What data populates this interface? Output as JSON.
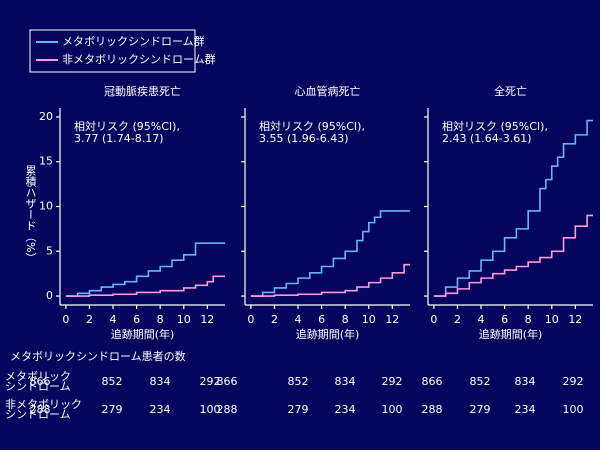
{
  "chart_data": [
    {
      "type": "step",
      "title": "冠動脈疾患死亡",
      "annotation": [
        "相対リスク (95%CI),",
        "3.77 (1.74-8.17)"
      ],
      "ylabel": "累積ハザード（%）",
      "xlabel": "追跡期間(年)",
      "xlim": [
        -0.5,
        13.5
      ],
      "xticks": [
        0,
        2,
        4,
        6,
        8,
        10,
        12
      ],
      "ylim": [
        -1,
        21
      ],
      "yticks": [
        0,
        5,
        10,
        15,
        20
      ],
      "series": [
        {
          "name": "メタボリックシンドローム群",
          "color": "#66b3ff",
          "x": [
            0,
            1,
            2,
            3,
            4,
            5,
            6,
            7,
            8,
            9,
            10,
            11,
            13.5
          ],
          "values": [
            0,
            0.3,
            0.6,
            1.0,
            1.3,
            1.6,
            2.2,
            2.8,
            3.3,
            4.0,
            4.6,
            5.9,
            5.9
          ]
        },
        {
          "name": "非メタボリックシンドローム群",
          "color": "#ff99dd",
          "x": [
            0,
            2,
            4,
            6,
            8,
            10,
            11,
            12,
            12.5,
            13.5
          ],
          "values": [
            0,
            0.1,
            0.2,
            0.4,
            0.6,
            0.9,
            1.2,
            1.6,
            2.2,
            2.2
          ]
        }
      ]
    },
    {
      "type": "step",
      "title": "心血管病死亡",
      "annotation": [
        "相対リスク (95%CI),",
        "3.55 (1.96-6.43)"
      ],
      "xlabel": "追跡期間(年)",
      "xlim": [
        -0.5,
        13.5
      ],
      "xticks": [
        0,
        2,
        4,
        6,
        8,
        10,
        12
      ],
      "ylim": [
        -1,
        21
      ],
      "yticks": [
        0,
        5,
        10,
        15,
        20
      ],
      "series": [
        {
          "color": "#66b3ff",
          "x": [
            0,
            1,
            2,
            3,
            4,
            5,
            6,
            7,
            8,
            9,
            9.5,
            10,
            10.5,
            11,
            13.5
          ],
          "values": [
            0,
            0.4,
            0.9,
            1.4,
            2.0,
            2.6,
            3.3,
            4.2,
            5.0,
            6.2,
            7.2,
            8.2,
            8.8,
            9.5,
            9.5
          ]
        },
        {
          "color": "#ff99dd",
          "x": [
            0,
            2,
            4,
            6,
            8,
            9,
            10,
            11,
            12,
            13,
            13.5
          ],
          "values": [
            0,
            0.1,
            0.2,
            0.4,
            0.6,
            1.0,
            1.5,
            2.0,
            2.6,
            3.5,
            3.5
          ]
        }
      ]
    },
    {
      "type": "step",
      "title": "全死亡",
      "annotation": [
        "相対リスク (95%CI),",
        "2.43 (1.64-3.61)"
      ],
      "xlabel": "追跡期間(年)",
      "xlim": [
        -0.5,
        13.5
      ],
      "xticks": [
        0,
        2,
        4,
        6,
        8,
        10,
        12
      ],
      "ylim": [
        -1,
        21
      ],
      "yticks": [
        0,
        5,
        10,
        15,
        20
      ],
      "series": [
        {
          "color": "#66b3ff",
          "x": [
            0,
            1,
            2,
            3,
            4,
            5,
            6,
            7,
            8,
            9,
            9.5,
            10,
            10.5,
            11,
            12,
            13,
            13.5
          ],
          "values": [
            0,
            1,
            2,
            2.8,
            4.0,
            5.0,
            6.5,
            7.5,
            9.5,
            12,
            13,
            14.5,
            15.5,
            17,
            18,
            19.6,
            19.6
          ]
        },
        {
          "color": "#ff99dd",
          "x": [
            0,
            1,
            2,
            3,
            4,
            5,
            6,
            7,
            8,
            9,
            10,
            11,
            12,
            13,
            13.5
          ],
          "values": [
            0,
            0.3,
            0.8,
            1.5,
            2.0,
            2.5,
            2.9,
            3.3,
            3.8,
            4.3,
            5.0,
            6.5,
            7.8,
            9.0,
            9.0
          ]
        }
      ]
    }
  ],
  "risk_table": {
    "title": "メタボリックシンドローム患者の数",
    "rows": [
      {
        "label": [
          "メタボリック",
          "シンドローム"
        ],
        "counts": [
          "866",
          "852",
          "834",
          "292",
          "866",
          "852",
          "834",
          "292",
          "866",
          "852",
          "834",
          "292"
        ]
      },
      {
        "label": [
          "非メタボリック",
          "シンドローム"
        ],
        "counts": [
          "288",
          "279",
          "234",
          "100",
          "288",
          "279",
          "234",
          "100",
          "288",
          "279",
          "234",
          "100"
        ]
      }
    ]
  }
}
